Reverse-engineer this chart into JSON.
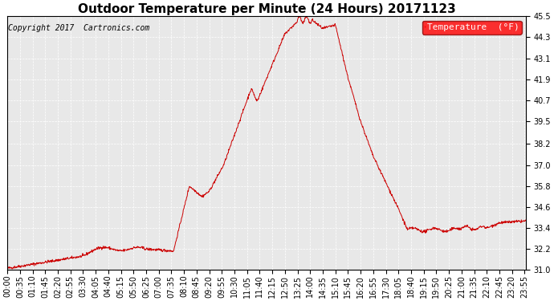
{
  "title": "Outdoor Temperature per Minute (24 Hours) 20171123",
  "copyright_text": "Copyright 2017  Cartronics.com",
  "legend_label": "Temperature  (°F)",
  "background_color": "#ffffff",
  "plot_bg_color": "#e8e8e8",
  "line_color": "#cc0000",
  "grid_color": "#ffffff",
  "ylim": [
    31.0,
    45.5
  ],
  "yticks": [
    31.0,
    32.2,
    33.4,
    34.6,
    35.8,
    37.0,
    38.2,
    39.5,
    40.7,
    41.9,
    43.1,
    44.3,
    45.5
  ],
  "title_fontsize": 11,
  "tick_fontsize": 7,
  "legend_fontsize": 8,
  "copyright_fontsize": 7
}
